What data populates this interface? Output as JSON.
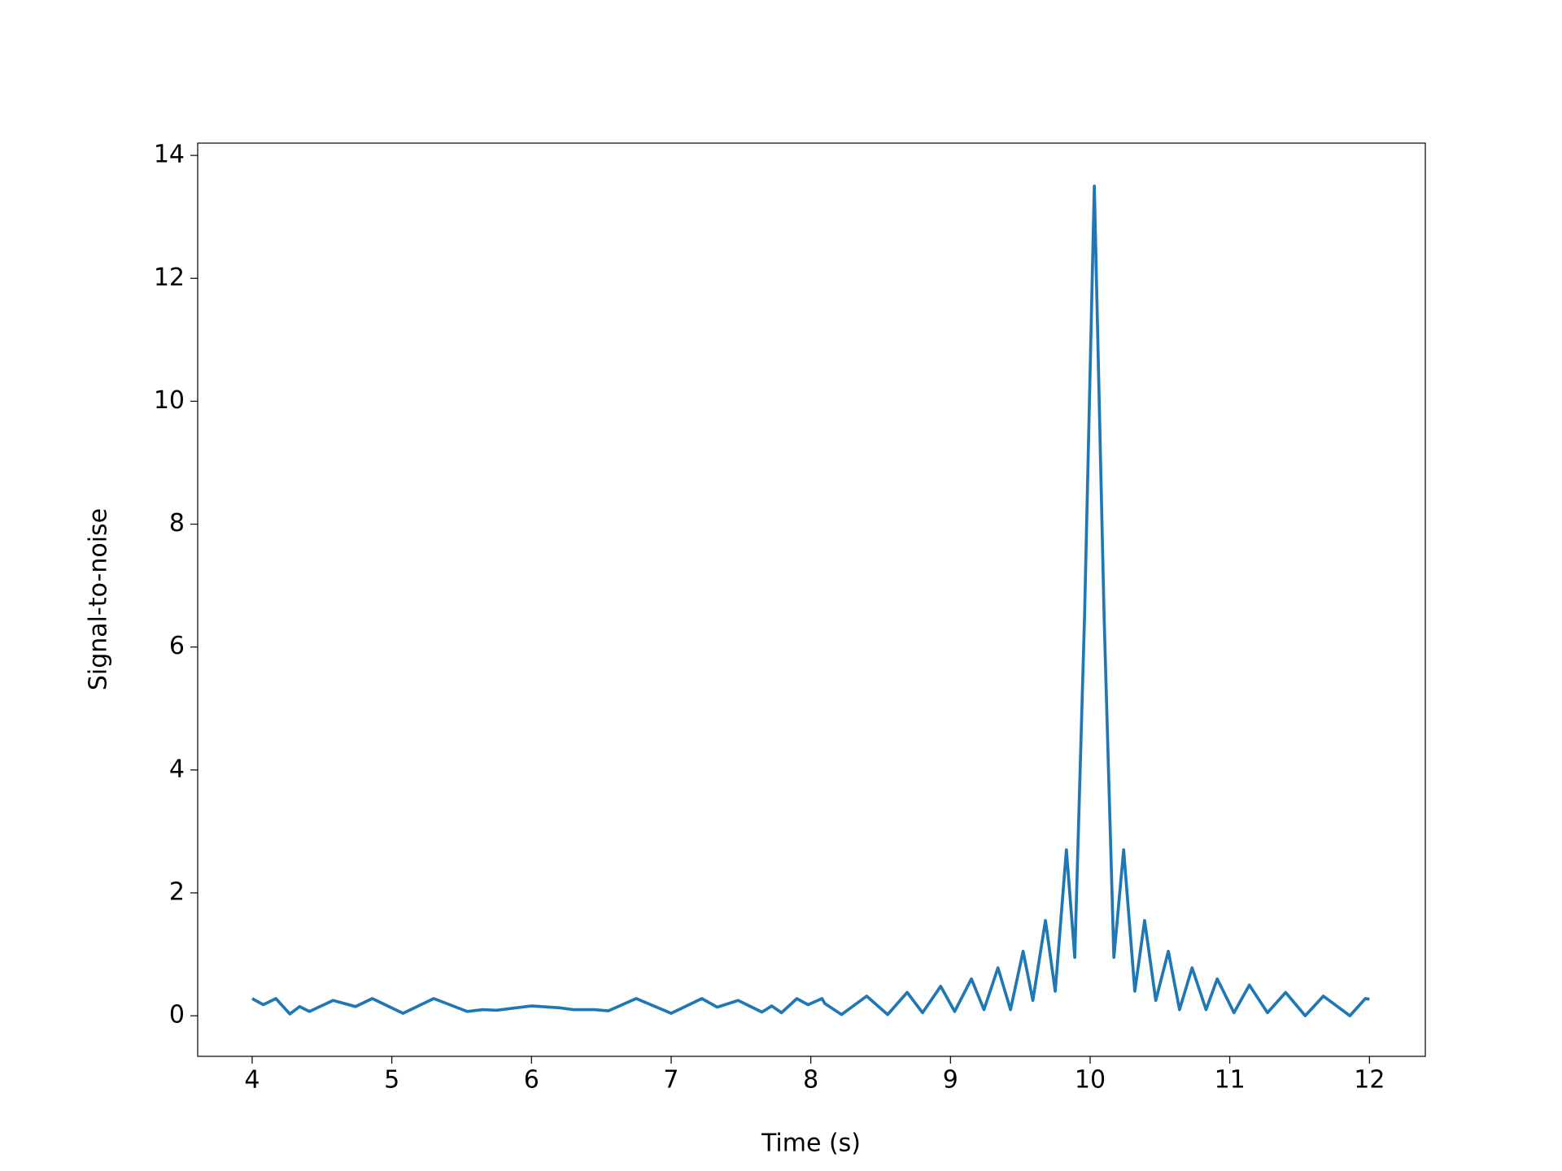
{
  "chart_data": {
    "type": "line",
    "xlabel": "Time (s)",
    "ylabel": "Signal-to-noise",
    "x": [
      4.0,
      4.08,
      4.17,
      4.27,
      4.34,
      4.41,
      4.58,
      4.74,
      4.86,
      5.08,
      5.3,
      5.54,
      5.65,
      5.75,
      6.0,
      6.2,
      6.3,
      6.45,
      6.55,
      6.75,
      7.0,
      7.22,
      7.33,
      7.48,
      7.65,
      7.72,
      7.79,
      7.9,
      7.98,
      8.08,
      8.1,
      8.22,
      8.4,
      8.55,
      8.69,
      8.8,
      8.93,
      9.03,
      9.15,
      9.24,
      9.34,
      9.43,
      9.52,
      9.59,
      9.68,
      9.75,
      9.83,
      9.89,
      9.96,
      10.03,
      10.1,
      10.17,
      10.24,
      10.32,
      10.39,
      10.47,
      10.56,
      10.64,
      10.73,
      10.83,
      10.91,
      11.03,
      11.14,
      11.27,
      11.4,
      11.54,
      11.67,
      11.86,
      11.97,
      12.0
    ],
    "series": [
      {
        "color": "#1f77b4",
        "values": [
          0.28,
          0.18,
          0.28,
          0.03,
          0.15,
          0.07,
          0.25,
          0.15,
          0.28,
          0.04,
          0.28,
          0.07,
          0.1,
          0.09,
          0.16,
          0.13,
          0.1,
          0.1,
          0.08,
          0.28,
          0.04,
          0.28,
          0.14,
          0.25,
          0.06,
          0.16,
          0.05,
          0.28,
          0.18,
          0.28,
          0.2,
          0.02,
          0.32,
          0.02,
          0.38,
          0.05,
          0.48,
          0.07,
          0.6,
          0.1,
          0.78,
          0.1,
          1.05,
          0.25,
          1.55,
          0.4,
          2.7,
          0.95,
          6.5,
          13.5,
          6.5,
          0.95,
          2.7,
          0.4,
          1.55,
          0.25,
          1.05,
          0.1,
          0.78,
          0.1,
          0.6,
          0.05,
          0.5,
          0.05,
          0.38,
          0.0,
          0.32,
          0.0,
          0.28,
          0.27
        ]
      }
    ],
    "xlim": [
      3.61,
      12.4
    ],
    "ylim": [
      -0.66,
      14.2
    ],
    "xticks": [
      4,
      5,
      6,
      7,
      8,
      9,
      10,
      11,
      12
    ],
    "yticks": [
      0,
      2,
      4,
      6,
      8,
      10,
      12,
      14
    ]
  }
}
